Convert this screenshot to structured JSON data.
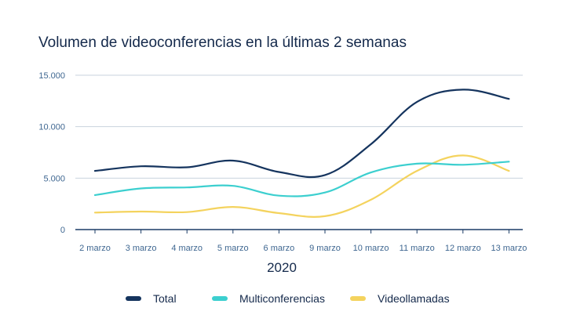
{
  "chart_data": {
    "type": "line",
    "title": "Volumen de videoconferencias en la últimas 2 semanas",
    "xlabel": "2020",
    "ylabel": "",
    "categories": [
      "2 marzo",
      "3 marzo",
      "4 marzo",
      "5 marzo",
      "6 marzo",
      "9 marzo",
      "10 marzo",
      "11 marzo",
      "12 marzo",
      "13 marzo"
    ],
    "ylim": [
      0,
      15000
    ],
    "yticks": [
      0,
      5000,
      10000,
      15000
    ],
    "ytick_labels": [
      "0",
      "5.000",
      "10.000",
      "15.000"
    ],
    "grid": true,
    "legend_position": "bottom",
    "series": [
      {
        "name": "Total",
        "color": "#15345e",
        "values": [
          5700,
          6150,
          6050,
          6700,
          5600,
          5300,
          8300,
          12400,
          13600,
          12700
        ]
      },
      {
        "name": "Multiconferencias",
        "color": "#3ccfcf",
        "values": [
          3350,
          4000,
          4100,
          4250,
          3300,
          3600,
          5550,
          6400,
          6300,
          6600
        ]
      },
      {
        "name": "Videollamadas",
        "color": "#f4d35e",
        "values": [
          1650,
          1750,
          1700,
          2200,
          1600,
          1300,
          2900,
          5700,
          7200,
          5700
        ]
      }
    ]
  }
}
